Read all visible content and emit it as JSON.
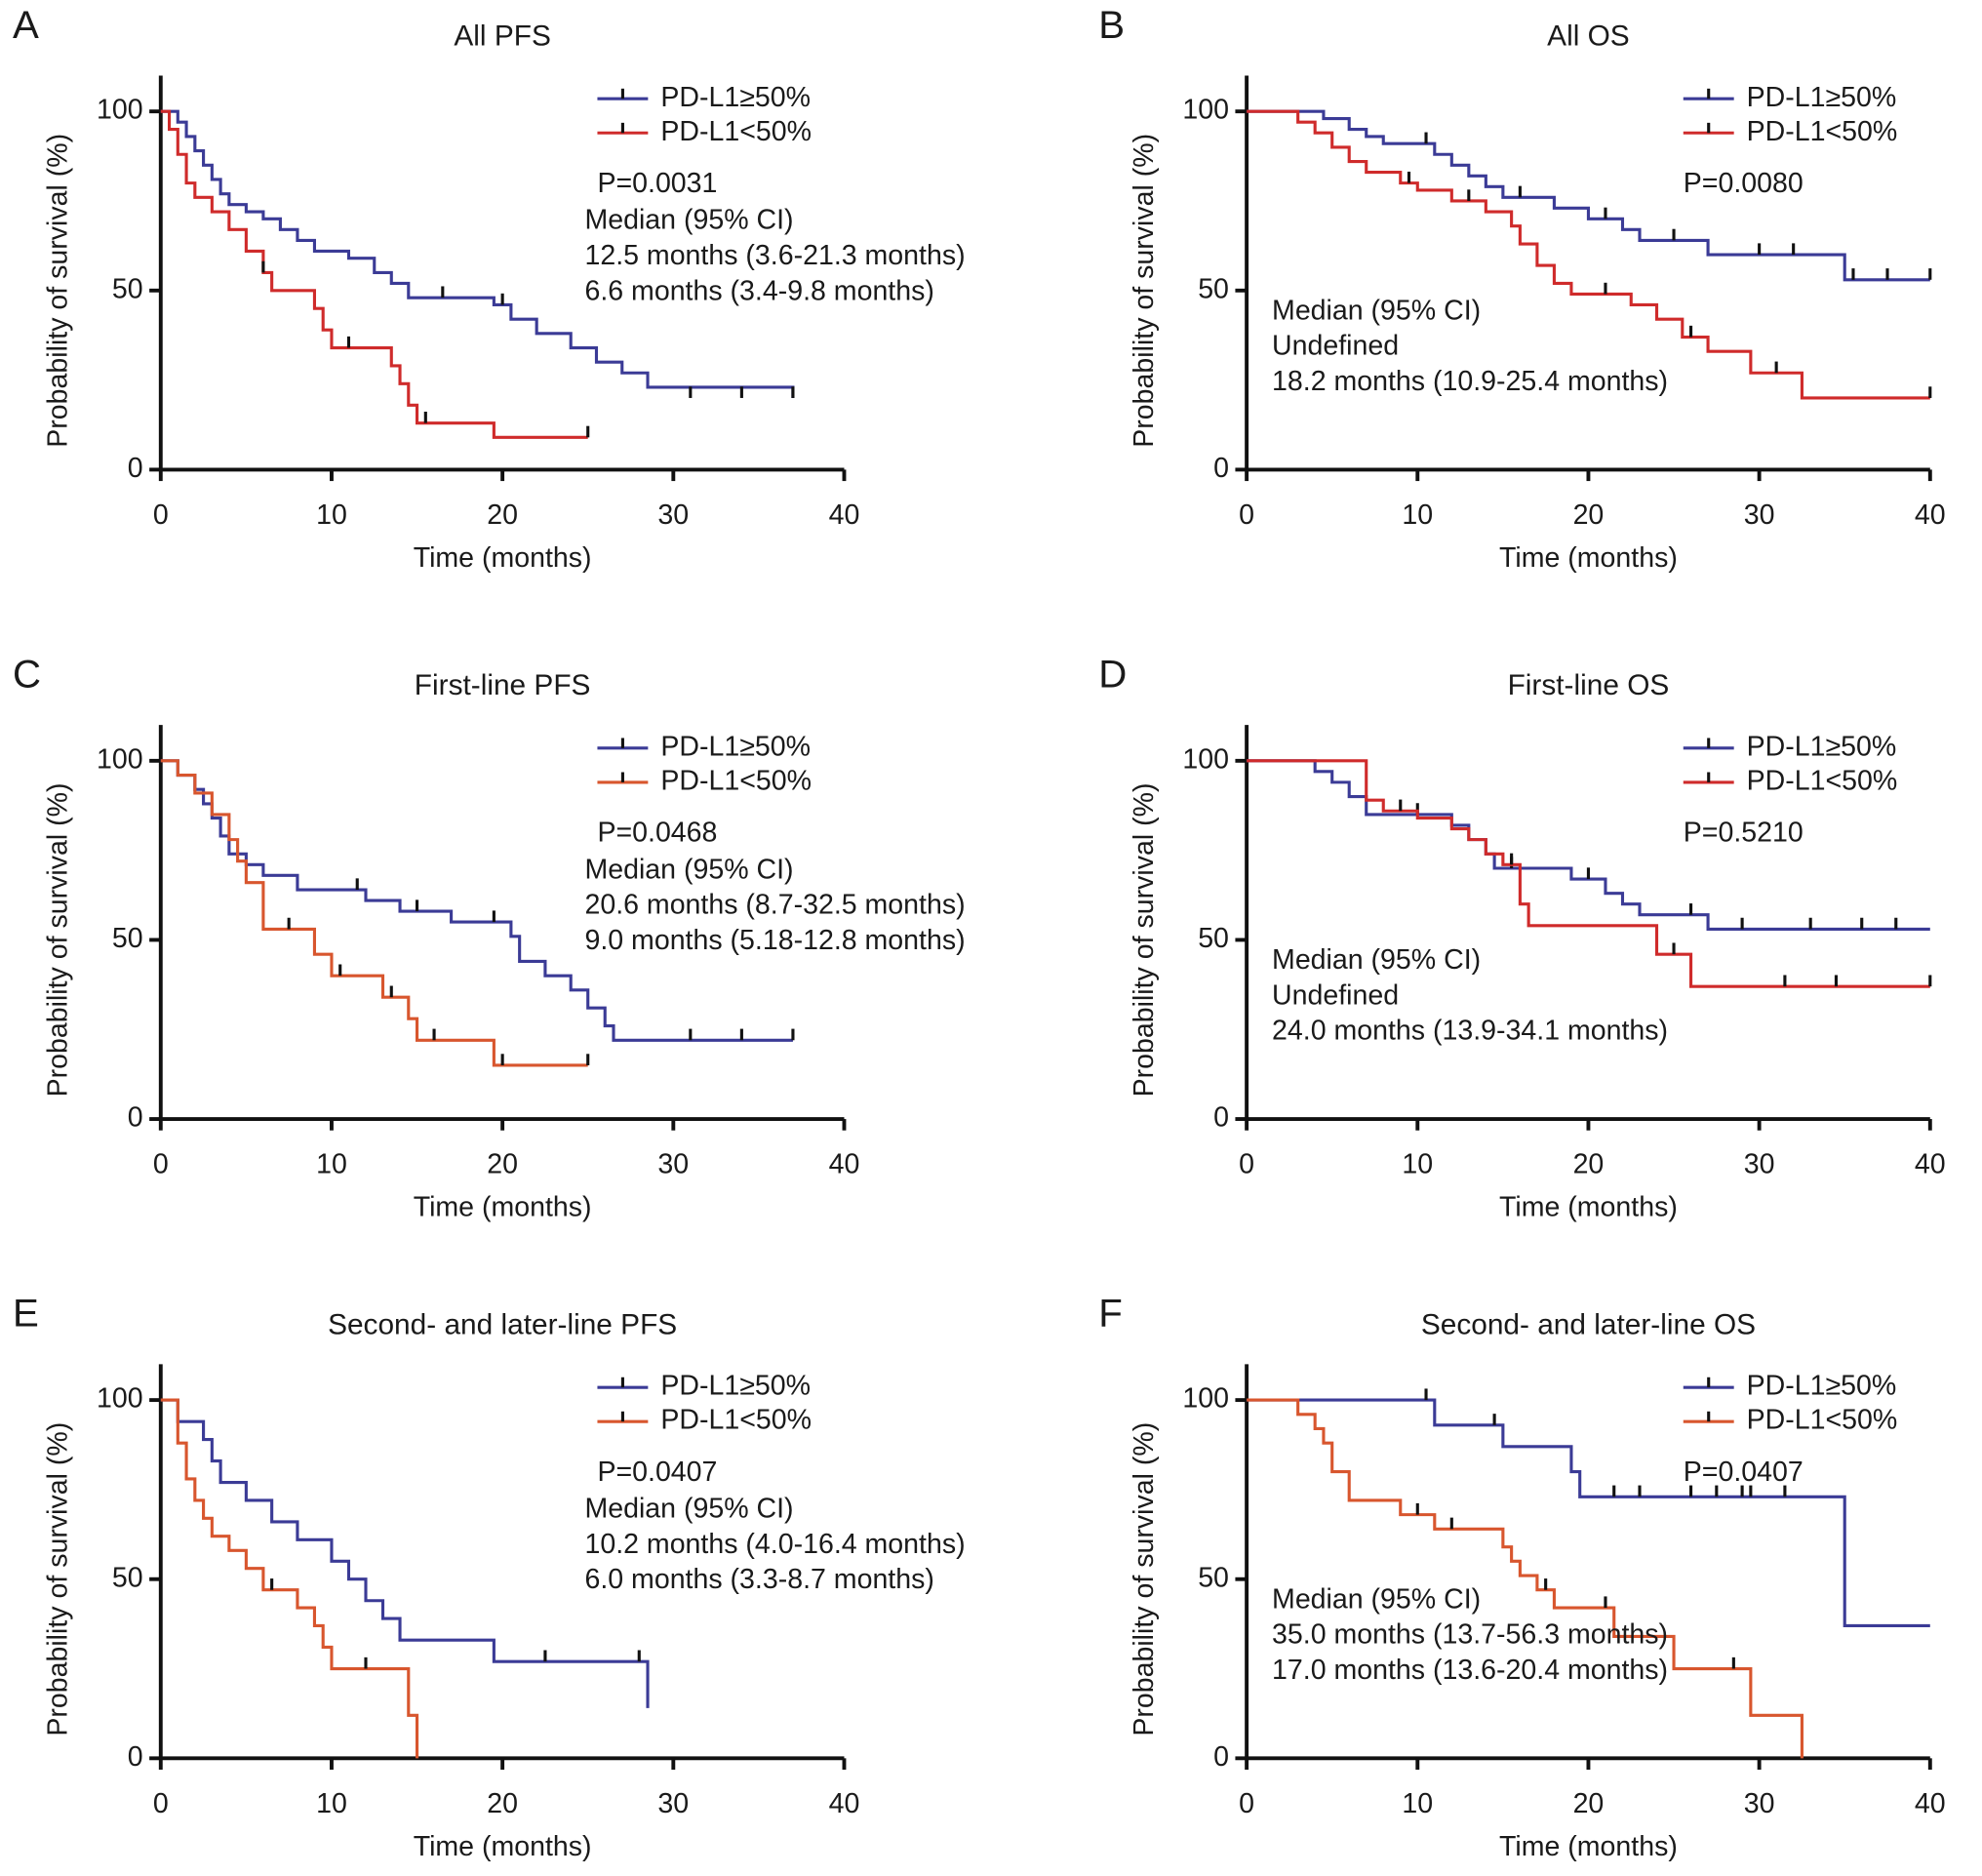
{
  "chart_data": [
    {
      "type": "step",
      "label": "A",
      "title": "All PFS",
      "x_label": "Time (months)",
      "y_label": "Probability of survival (%)",
      "xlim": [
        0,
        40
      ],
      "xticks": [
        0,
        10,
        20,
        30,
        40
      ],
      "ylim": [
        0,
        110
      ],
      "yticks": [
        0,
        50,
        100
      ],
      "legend": "upper-right",
      "series": [
        {
          "name": "PD-L1≥50%",
          "color": "#3b3b96",
          "x": [
            0,
            1,
            1.5,
            2,
            2.5,
            3,
            3.5,
            4,
            5,
            6,
            7,
            8,
            9,
            11,
            12.5,
            13.5,
            14.5,
            19.5,
            20.5,
            22,
            24,
            25.5,
            27,
            28.5,
            37
          ],
          "values": [
            100,
            97,
            93,
            89,
            85,
            81,
            77,
            74,
            72,
            70,
            67,
            64,
            61,
            59,
            55,
            52,
            48,
            46,
            42,
            38,
            34,
            30,
            27,
            23,
            20
          ],
          "censor_x": [
            16.5,
            20,
            31,
            34,
            37
          ],
          "censor_values": [
            48,
            46,
            20,
            20,
            20
          ]
        },
        {
          "name": "PD-L1<50%",
          "color": "#cf2b2b",
          "x": [
            0,
            0.5,
            1,
            1.5,
            2,
            3,
            4,
            5,
            6,
            6.5,
            9,
            9.5,
            10,
            13.5,
            14,
            14.5,
            15,
            19.5,
            25
          ],
          "values": [
            100,
            95,
            88,
            80,
            76,
            72,
            67,
            61,
            55,
            50,
            45,
            39,
            34,
            29,
            24,
            18,
            13,
            9,
            9
          ],
          "censor_x": [
            6,
            11,
            15.5,
            25
          ],
          "censor_values": [
            55,
            34,
            13,
            9
          ]
        }
      ],
      "p_value": "P=0.0031",
      "annotation_corner": "upper-right",
      "annotations": [
        {
          "text": "Median (95% CI)",
          "color": "#1a1a1a"
        },
        {
          "text": "12.5 months (3.6-21.3 months)",
          "color": "#3b3ba0"
        },
        {
          "text": "6.6 months (3.4-9.8 months)",
          "color": "#d42a2a"
        }
      ]
    },
    {
      "type": "step",
      "label": "B",
      "title": "All OS",
      "x_label": "Time (months)",
      "y_label": "Probability of survival (%)",
      "xlim": [
        0,
        40
      ],
      "xticks": [
        0,
        10,
        20,
        30,
        40
      ],
      "ylim": [
        0,
        110
      ],
      "yticks": [
        0,
        50,
        100
      ],
      "legend": "upper-right",
      "series": [
        {
          "name": "PD-L1≥50%",
          "color": "#3b3b96",
          "x": [
            0,
            4.5,
            6,
            7,
            8,
            11,
            12,
            13,
            14,
            15,
            18,
            20,
            22,
            23,
            27,
            35,
            40
          ],
          "values": [
            100,
            98,
            95,
            93,
            91,
            88,
            85,
            82,
            79,
            76,
            73,
            70,
            67,
            64,
            60,
            53,
            53
          ],
          "censor_x": [
            10.5,
            16,
            21,
            25,
            30,
            32,
            35.5,
            37.5,
            40
          ],
          "censor_values": [
            91,
            76,
            70,
            64,
            60,
            60,
            53,
            53,
            53
          ]
        },
        {
          "name": "PD-L1<50%",
          "color": "#cf2b2b",
          "x": [
            0,
            3,
            4,
            5,
            6,
            7,
            9,
            10,
            12,
            14,
            15.5,
            16,
            17,
            18,
            19,
            22.5,
            24,
            25.5,
            27,
            29.5,
            32.5,
            40
          ],
          "values": [
            100,
            97,
            94,
            90,
            86,
            83,
            80,
            78,
            75,
            72,
            68,
            63,
            57,
            52,
            49,
            46,
            42,
            37,
            33,
            27,
            20,
            20
          ],
          "censor_x": [
            9.5,
            13,
            21,
            26,
            31,
            40
          ],
          "censor_values": [
            80,
            75,
            49,
            37,
            27,
            20
          ]
        }
      ],
      "p_value": "P=0.0080",
      "annotation_corner": "lower-left",
      "annotations": [
        {
          "text": "Median (95% CI)",
          "color": "#1a1a1a"
        },
        {
          "text": "Undefined",
          "color": "#3b3ba0"
        },
        {
          "text": "18.2 months (10.9-25.4 months)",
          "color": "#d42a2a"
        }
      ]
    },
    {
      "type": "step",
      "label": "C",
      "title": "First-line PFS",
      "x_label": "Time (months)",
      "y_label": "Probability of survival (%)",
      "xlim": [
        0,
        40
      ],
      "xticks": [
        0,
        10,
        20,
        30,
        40
      ],
      "ylim": [
        0,
        110
      ],
      "yticks": [
        0,
        50,
        100
      ],
      "legend": "upper-right",
      "series": [
        {
          "name": "PD-L1≥50%",
          "color": "#3b3b96",
          "x": [
            0,
            1,
            2,
            2.5,
            3,
            3.5,
            4,
            5,
            6,
            8,
            12,
            14,
            17,
            20.5,
            21,
            22.5,
            24,
            25,
            26,
            26.5,
            37
          ],
          "values": [
            100,
            96,
            92,
            88,
            84,
            79,
            74,
            71,
            68,
            64,
            61,
            58,
            55,
            51,
            44,
            40,
            36,
            31,
            26,
            22,
            22
          ],
          "censor_x": [
            11.5,
            15,
            19.5,
            31,
            34,
            37
          ],
          "censor_values": [
            64,
            58,
            55,
            22,
            22,
            22
          ]
        },
        {
          "name": "PD-L1<50%",
          "color": "#d8562e",
          "x": [
            0,
            1,
            2,
            3,
            4,
            4.5,
            5,
            6,
            9,
            10,
            13,
            14.5,
            15,
            19.5,
            25
          ],
          "values": [
            100,
            96,
            91,
            85,
            78,
            72,
            66,
            53,
            46,
            40,
            34,
            28,
            22,
            15,
            15
          ],
          "censor_x": [
            7.5,
            10.5,
            13.5,
            16,
            20,
            25
          ],
          "censor_values": [
            53,
            40,
            34,
            22,
            15,
            15
          ]
        }
      ],
      "p_value": "P=0.0468",
      "annotation_corner": "upper-right",
      "annotations": [
        {
          "text": "Median (95% CI)",
          "color": "#1a1a1a"
        },
        {
          "text": "20.6 months (8.7-32.5 months)",
          "color": "#3b3ba0"
        },
        {
          "text": "9.0 months (5.18-12.8 months)",
          "color": "#d42a2a"
        }
      ]
    },
    {
      "type": "step",
      "label": "D",
      "title": "First-line OS",
      "x_label": "Time (months)",
      "y_label": "Probability of survival (%)",
      "xlim": [
        0,
        40
      ],
      "xticks": [
        0,
        10,
        20,
        30,
        40
      ],
      "ylim": [
        0,
        110
      ],
      "yticks": [
        0,
        50,
        100
      ],
      "legend": "upper-right",
      "series": [
        {
          "name": "PD-L1≥50%",
          "color": "#3b3b96",
          "x": [
            0,
            4,
            5,
            6,
            7,
            12,
            13,
            14,
            14.5,
            19,
            21,
            22,
            23,
            27,
            40
          ],
          "values": [
            100,
            97,
            94,
            90,
            85,
            82,
            78,
            74,
            70,
            67,
            63,
            60,
            57,
            53,
            53
          ],
          "censor_x": [
            10,
            15.5,
            20,
            26,
            29,
            33,
            36,
            38
          ],
          "censor_values": [
            85,
            70,
            67,
            57,
            53,
            53,
            53,
            53
          ]
        },
        {
          "name": "PD-L1<50%",
          "color": "#cf2b2b",
          "x": [
            0,
            7,
            8,
            10,
            12,
            13,
            14,
            15,
            16,
            16.5,
            24,
            26,
            40
          ],
          "values": [
            100,
            89,
            86,
            84,
            81,
            78,
            74,
            71,
            60,
            54,
            46,
            37,
            37
          ],
          "censor_x": [
            9,
            15.5,
            25,
            31.5,
            34.5,
            40
          ],
          "censor_values": [
            86,
            71,
            46,
            37,
            37,
            37
          ]
        }
      ],
      "p_value": "P=0.5210",
      "annotation_corner": "lower-left",
      "annotations": [
        {
          "text": "Median (95% CI)",
          "color": "#1a1a1a"
        },
        {
          "text": "Undefined",
          "color": "#3b3ba0"
        },
        {
          "text": "24.0 months (13.9-34.1 months)",
          "color": "#d42a2a"
        }
      ]
    },
    {
      "type": "step",
      "label": "E",
      "title": "Second- and later-line PFS",
      "x_label": "Time (months)",
      "y_label": "Probability of survival (%)",
      "xlim": [
        0,
        40
      ],
      "xticks": [
        0,
        10,
        20,
        30,
        40
      ],
      "ylim": [
        0,
        110
      ],
      "yticks": [
        0,
        50,
        100
      ],
      "legend": "upper-right",
      "series": [
        {
          "name": "PD-L1≥50%",
          "color": "#3b3b96",
          "x": [
            0,
            1,
            2.5,
            3,
            3.5,
            5,
            6.5,
            8,
            10,
            11,
            12,
            13,
            14,
            19.5,
            28.5
          ],
          "values": [
            100,
            94,
            89,
            83,
            77,
            72,
            66,
            61,
            55,
            50,
            44,
            39,
            33,
            27,
            14
          ],
          "censor_x": [
            22.5,
            28
          ],
          "censor_values": [
            27,
            27
          ]
        },
        {
          "name": "PD-L1<50%",
          "color": "#d8562e",
          "x": [
            0,
            1,
            1.5,
            2,
            2.5,
            3,
            4,
            5,
            6,
            8,
            9,
            9.5,
            10,
            14.5,
            15
          ],
          "values": [
            100,
            88,
            78,
            72,
            67,
            62,
            58,
            53,
            47,
            42,
            37,
            31,
            25,
            12,
            0
          ],
          "censor_x": [
            6.5,
            12
          ],
          "censor_values": [
            47,
            25
          ]
        }
      ],
      "p_value": "P=0.0407",
      "annotation_corner": "upper-right",
      "annotations": [
        {
          "text": "Median (95% CI)",
          "color": "#1a1a1a"
        },
        {
          "text": "10.2 months (4.0-16.4 months)",
          "color": "#3b3ba0"
        },
        {
          "text": "6.0 months (3.3-8.7 months)",
          "color": "#d42a2a"
        }
      ]
    },
    {
      "type": "step",
      "label": "F",
      "title": "Second- and later-line OS",
      "x_label": "Time (months)",
      "y_label": "Probability of survival (%)",
      "xlim": [
        0,
        40
      ],
      "xticks": [
        0,
        10,
        20,
        30,
        40
      ],
      "ylim": [
        0,
        110
      ],
      "yticks": [
        0,
        50,
        100
      ],
      "legend": "upper-right",
      "series": [
        {
          "name": "PD-L1≥50%",
          "color": "#3b3b96",
          "x": [
            0,
            11,
            15,
            19,
            19.5,
            35,
            40
          ],
          "values": [
            100,
            93,
            87,
            80,
            73,
            37,
            37
          ],
          "censor_x": [
            10.5,
            14.5,
            21.5,
            23,
            26,
            27.5,
            29,
            29.5,
            31.5
          ],
          "censor_values": [
            100,
            93,
            73,
            73,
            73,
            73,
            73,
            73,
            73
          ]
        },
        {
          "name": "PD-L1<50%",
          "color": "#d8562e",
          "x": [
            0,
            3,
            4,
            4.5,
            5,
            6,
            9,
            11,
            15,
            15.5,
            16,
            17,
            18,
            21.5,
            25,
            29.5,
            32.5
          ],
          "values": [
            100,
            96,
            92,
            88,
            80,
            72,
            68,
            64,
            59,
            55,
            51,
            47,
            42,
            34,
            25,
            12,
            0
          ],
          "censor_x": [
            10,
            12,
            17.5,
            21,
            28.5
          ],
          "censor_values": [
            68,
            64,
            47,
            42,
            25
          ]
        }
      ],
      "p_value": "P=0.0407",
      "annotation_corner": "lower-left",
      "annotations": [
        {
          "text": "Median (95% CI)",
          "color": "#1a1a1a"
        },
        {
          "text": "35.0 months (13.7-56.3 months)",
          "color": "#3b3ba0"
        },
        {
          "text": "17.0 months (13.6-20.4 months)",
          "color": "#d42a2a"
        }
      ]
    }
  ]
}
